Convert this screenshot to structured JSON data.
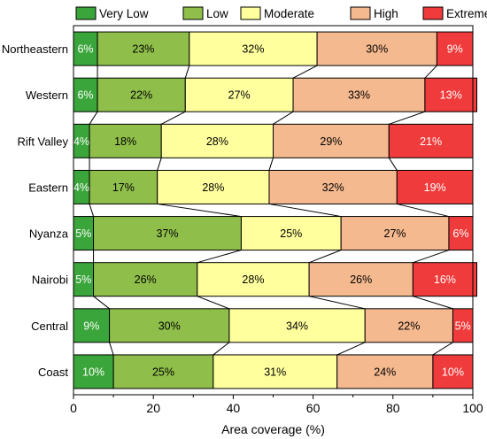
{
  "chart_data": {
    "type": "bar",
    "orientation": "horizontal",
    "stacked": true,
    "normalized_percent": true,
    "categories": [
      "Northeastern",
      "Western",
      "Rift Valley",
      "Eastern",
      "Nyanza",
      "Nairobi",
      "Central",
      "Coast"
    ],
    "series": [
      {
        "name": "Very Low",
        "color": "#3aa53a",
        "label_color": "#ffffff",
        "values": [
          6,
          6,
          4,
          4,
          5,
          5,
          9,
          10
        ]
      },
      {
        "name": "Low",
        "color": "#8fbf4a",
        "label_color": "#000000",
        "values": [
          23,
          22,
          18,
          17,
          37,
          26,
          30,
          25
        ]
      },
      {
        "name": "Moderate",
        "color": "#ffff9e",
        "label_color": "#000000",
        "values": [
          32,
          27,
          28,
          28,
          25,
          28,
          34,
          31
        ]
      },
      {
        "name": "High",
        "color": "#f4b98f",
        "label_color": "#000000",
        "values": [
          30,
          33,
          29,
          32,
          27,
          26,
          22,
          24
        ]
      },
      {
        "name": "Extremely High",
        "color": "#ef3b3b",
        "label_color": "#ffffff",
        "values": [
          9,
          13,
          21,
          19,
          6,
          16,
          5,
          10
        ]
      }
    ],
    "xlabel": "Area coverage (%)",
    "ylabel": "",
    "xlim": [
      0,
      100
    ],
    "xticks": [
      0,
      20,
      40,
      60,
      80,
      100
    ],
    "grid": false,
    "legend_position": "top",
    "connector_lines": true
  }
}
